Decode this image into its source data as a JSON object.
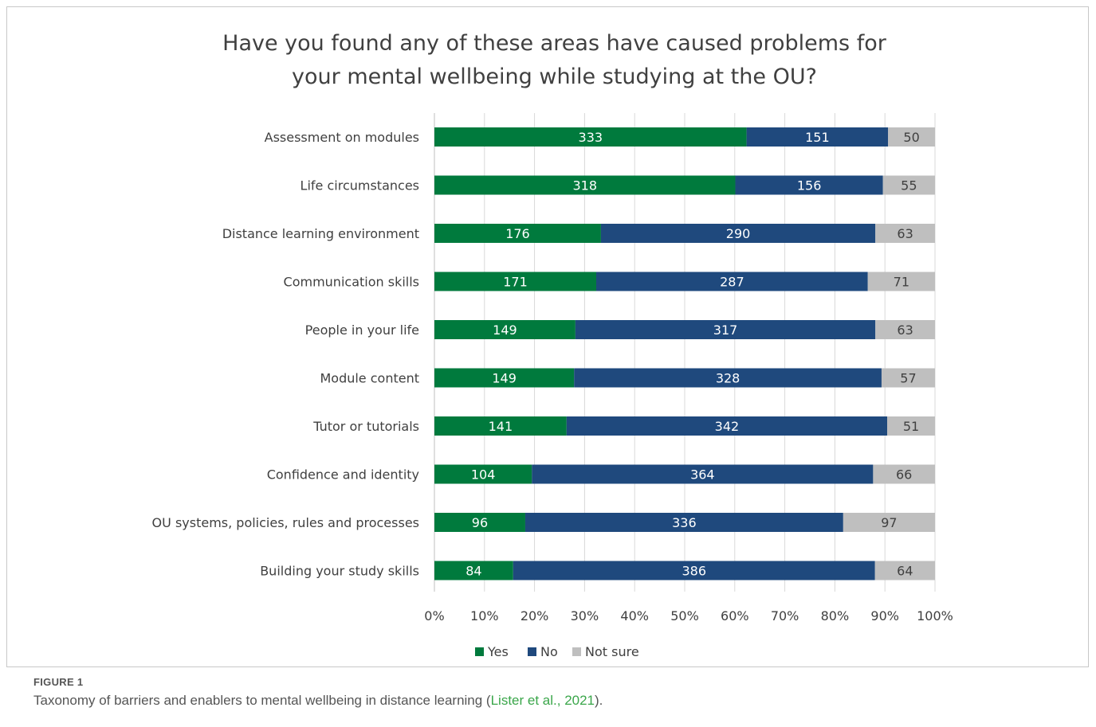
{
  "figure": {
    "label": "FIGURE 1",
    "caption_before": "Taxonomy of barriers and enablers to mental wellbeing in distance learning (",
    "caption_cite": "Lister et al., 2021",
    "caption_after": ")."
  },
  "chart_data": {
    "type": "bar",
    "orientation": "horizontal",
    "stacking": "100% stacked",
    "title_line1": "Have you found any of these areas have caused problems for",
    "title_line2": "your mental wellbeing while studying at the OU?",
    "categories": [
      "Assessment on modules",
      "Life circumstances",
      "Distance learning environment",
      "Communication skills",
      "People in your life",
      "Module content",
      "Tutor or tutorials",
      "Confidence and identity",
      "OU systems, policies, rules and processes",
      "Building your study skills"
    ],
    "series": [
      {
        "name": "Yes",
        "color": "#007a3d",
        "values": [
          333,
          318,
          176,
          171,
          149,
          149,
          141,
          104,
          96,
          84
        ]
      },
      {
        "name": "No",
        "color": "#1f497d",
        "values": [
          151,
          156,
          290,
          287,
          317,
          328,
          342,
          364,
          336,
          386
        ]
      },
      {
        "name": "Not sure",
        "color": "#bfbfbf",
        "values": [
          50,
          55,
          63,
          71,
          63,
          57,
          51,
          66,
          97,
          64
        ]
      }
    ],
    "x_ticks": [
      "0%",
      "10%",
      "20%",
      "30%",
      "40%",
      "50%",
      "60%",
      "70%",
      "80%",
      "90%",
      "100%"
    ],
    "xlim": [
      0,
      100
    ],
    "grid": true,
    "legend_position": "bottom"
  }
}
